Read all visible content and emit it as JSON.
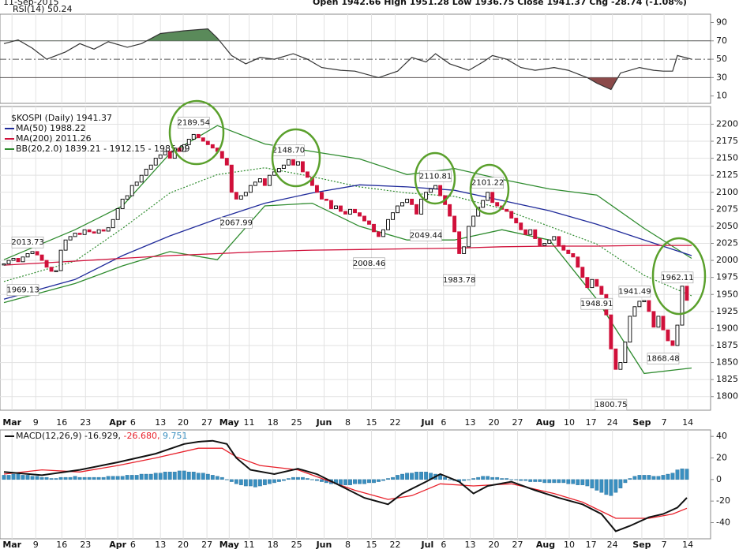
{
  "header": {
    "date": "11-Sep-2015",
    "quote": "Open 1942.66  High 1951.28  Low 1936.75  Close 1941.37  Chg -28.74 (-1.08%)"
  },
  "chart_data": [
    {
      "type": "rsi",
      "title": "RSI(14) 50.24",
      "color": "#333333",
      "overbought": 70,
      "oversold": 30,
      "midline": 50,
      "overbought_color": "#5a8a5a",
      "oversold_color": "#8b4a4a",
      "xlim": [
        0,
        149
      ],
      "ylim": [
        2,
        99
      ],
      "yticks": [
        90,
        70,
        50,
        30,
        10
      ],
      "x": [
        0,
        3,
        6,
        9,
        13,
        16,
        19,
        22,
        26,
        29,
        33,
        38,
        43,
        45,
        48,
        51,
        54,
        57,
        61,
        64,
        67,
        71,
        74,
        79,
        83,
        86,
        89,
        91,
        94,
        98,
        101,
        103,
        106,
        109,
        112,
        116,
        119,
        123,
        125,
        128,
        130,
        134,
        137,
        139,
        141,
        142,
        145
      ],
      "values": [
        67,
        71,
        62,
        50,
        58,
        67,
        61,
        69,
        63,
        67,
        78,
        81,
        83,
        73,
        54,
        45,
        52,
        50,
        56,
        50,
        41,
        38,
        37,
        30,
        37,
        52,
        47,
        56,
        45,
        38,
        47,
        54,
        50,
        41,
        38,
        41,
        38,
        30,
        24,
        17,
        35,
        41,
        38,
        37,
        37,
        54,
        50
      ]
    },
    {
      "type": "candlestick",
      "title": "$KOSPI (Daily) 1941.37",
      "color_up": "#000000",
      "color_down": "#d0103a",
      "grid": true,
      "xlim": [
        0,
        149
      ],
      "ylim": [
        1780,
        2226
      ],
      "yticks": [
        2200,
        2175,
        2150,
        2125,
        2100,
        2075,
        2050,
        2025,
        2000,
        1975,
        1950,
        1925,
        1900,
        1875,
        1850,
        1825,
        1800
      ],
      "xticks": [
        {
          "value": 1.7,
          "label": "Mar"
        },
        {
          "value": 6.7,
          "label": "9"
        },
        {
          "value": 12.2,
          "label": "16"
        },
        {
          "value": 17.2,
          "label": "23"
        },
        {
          "value": 24,
          "label": "Apr"
        },
        {
          "value": 27.2,
          "label": "6"
        },
        {
          "value": 33,
          "label": "13"
        },
        {
          "value": 37.8,
          "label": "20"
        },
        {
          "value": 42.8,
          "label": "27"
        },
        {
          "value": 47.5,
          "label": "May"
        },
        {
          "value": 51.7,
          "label": "11"
        },
        {
          "value": 56.7,
          "label": "18"
        },
        {
          "value": 61.7,
          "label": "25"
        },
        {
          "value": 67.5,
          "label": "Jun"
        },
        {
          "value": 72.5,
          "label": "8"
        },
        {
          "value": 77.5,
          "label": "15"
        },
        {
          "value": 82.5,
          "label": "22"
        },
        {
          "value": 89.3,
          "label": "Jul"
        },
        {
          "value": 92.7,
          "label": "6"
        },
        {
          "value": 98.3,
          "label": "13"
        },
        {
          "value": 103.3,
          "label": "20"
        },
        {
          "value": 108.3,
          "label": "27"
        },
        {
          "value": 114.2,
          "label": "Aug"
        },
        {
          "value": 119.2,
          "label": "10"
        },
        {
          "value": 123.8,
          "label": "17"
        },
        {
          "value": 128.3,
          "label": "24"
        },
        {
          "value": 134.5,
          "label": "Sep"
        },
        {
          "value": 139.2,
          "label": "7"
        },
        {
          "value": 144.2,
          "label": "14"
        }
      ],
      "closes": [
        1995,
        2000,
        2003,
        1998,
        2005,
        2010,
        2013,
        2008,
        2000,
        1990,
        1984,
        1985,
        2015,
        2030,
        2035,
        2040,
        2038,
        2045,
        2042,
        2040,
        2045,
        2043,
        2048,
        2060,
        2076,
        2090,
        2095,
        2110,
        2115,
        2125,
        2134,
        2140,
        2150,
        2155,
        2160,
        2150,
        2165,
        2160,
        2170,
        2178,
        2185,
        2180,
        2175,
        2170,
        2165,
        2160,
        2150,
        2140,
        2100,
        2090,
        2095,
        2100,
        2110,
        2115,
        2120,
        2110,
        2125,
        2130,
        2135,
        2140,
        2148,
        2140,
        2145,
        2130,
        2122,
        2110,
        2100,
        2090,
        2088,
        2076,
        2080,
        2072,
        2068,
        2075,
        2070,
        2065,
        2058,
        2053,
        2042,
        2035,
        2045,
        2060,
        2070,
        2080,
        2085,
        2090,
        2082,
        2068,
        2090,
        2100,
        2105,
        2110,
        2095,
        2082,
        2065,
        2042,
        2010,
        2020,
        2050,
        2065,
        2078,
        2088,
        2100,
        2085,
        2080,
        2075,
        2072,
        2062,
        2055,
        2045,
        2038,
        2045,
        2032,
        2022,
        2025,
        2030,
        2035,
        2022,
        2015,
        2010,
        2005,
        1990,
        1975,
        1960,
        1972,
        1962,
        1950,
        1920,
        1870,
        1840,
        1850,
        1880,
        1918,
        1932,
        1940,
        1941,
        1925,
        1902,
        1918,
        1898,
        1882,
        1875,
        1905,
        1962.11,
        1941.37
      ],
      "line_x": [
        0,
        15,
        25,
        35,
        45,
        55,
        65,
        75,
        85,
        95,
        105,
        115,
        125,
        135,
        145
      ],
      "series": [
        {
          "name": "MA(50) 1988.22",
          "color": "#1f2a9a",
          "values": [
            1943,
            1972,
            2007,
            2036,
            2061,
            2084,
            2099,
            2111,
            2108,
            2103,
            2088,
            2073,
            2053,
            2030,
            2007
          ]
        },
        {
          "name": "MA(200) 2011.26",
          "color": "#d0103a",
          "values": [
            1993,
            1999,
            2003,
            2007,
            2010,
            2013,
            2015,
            2016,
            2017,
            2018,
            2020,
            2021,
            2021,
            2022,
            2022
          ]
        }
      ],
      "bands": {
        "name": "BB(20,2.0) 1839.21 - 1912.15 - 1985.09",
        "color": "#2e8b2e",
        "upper": [
          2001,
          2045,
          2080,
          2157,
          2198,
          2171,
          2160,
          2149,
          2126,
          2135,
          2119,
          2105,
          2096,
          2047,
          2003
        ],
        "middle": [
          1969,
          1999,
          2047,
          2099,
          2126,
          2136,
          2123,
          2108,
          2099,
          2094,
          2076,
          2050,
          2024,
          1978,
          1948
        ],
        "lower": [
          1938,
          1966,
          1992,
          2013,
          2001,
          2080,
          2084,
          2050,
          2030,
          2030,
          2045,
          2030,
          1943,
          1834,
          1842
        ]
      },
      "annotations": [
        {
          "label": "2013.73",
          "value": 2013.73,
          "x": 5,
          "position": "above"
        },
        {
          "label": "1969.13",
          "value": 1969.13,
          "x": 4,
          "position": "below"
        },
        {
          "label": "2189.54",
          "value": 2189.54,
          "x": 40,
          "position": "above"
        },
        {
          "label": "2067.99",
          "value": 2067.99,
          "x": 49,
          "position": "below"
        },
        {
          "label": "2148.70",
          "value": 2148.7,
          "x": 60,
          "position": "above"
        },
        {
          "label": "2008.46",
          "value": 2008.46,
          "x": 77,
          "position": "below"
        },
        {
          "label": "2049.44",
          "value": 2049.44,
          "x": 89,
          "position": "below"
        },
        {
          "label": "2110.81",
          "value": 2110.81,
          "x": 91,
          "position": "above"
        },
        {
          "label": "1983.78",
          "value": 1983.78,
          "x": 96,
          "position": "below"
        },
        {
          "label": "2101.22",
          "value": 2101.22,
          "x": 102,
          "position": "above"
        },
        {
          "label": "1948.91",
          "value": 1948.91,
          "x": 125,
          "position": "below"
        },
        {
          "label": "1800.75",
          "value": 1800.75,
          "x": 128,
          "position": "below"
        },
        {
          "label": "1941.49",
          "value": 1941.49,
          "x": 133,
          "position": "above"
        },
        {
          "label": "1868.48",
          "value": 1868.48,
          "x": 139,
          "position": "below"
        },
        {
          "label": "1962.11",
          "value": 1962.11,
          "x": 142,
          "position": "above"
        }
      ]
    },
    {
      "type": "macd",
      "title": "MACD(12,26,9)",
      "xlim": [
        0,
        149
      ],
      "ylim": [
        -55,
        46
      ],
      "yticks": [
        40,
        20,
        0,
        -20,
        -40
      ],
      "series": [
        {
          "name": "-16.929,",
          "color": "#111111",
          "x": [
            0,
            8,
            16,
            24,
            32,
            38,
            41,
            44,
            47,
            49,
            52,
            57,
            62,
            66,
            71,
            76,
            81,
            84,
            89,
            92,
            96,
            99,
            102,
            107,
            112,
            117,
            122,
            126,
            129,
            132,
            136,
            139,
            142,
            144
          ],
          "values": [
            7,
            4,
            9,
            16,
            24,
            33,
            35,
            36,
            33,
            20,
            9,
            5,
            10,
            5,
            -6,
            -17,
            -23,
            -13,
            -2,
            5,
            -2,
            -13,
            -6,
            -2,
            -10,
            -17,
            -23,
            -32,
            -48,
            -43,
            -35,
            -32,
            -26,
            -16.929
          ]
        },
        {
          "name": "-26.680,",
          "color": "#e8202a",
          "x": [
            0,
            8,
            16,
            24,
            32,
            41,
            46,
            49,
            54,
            62,
            67,
            74,
            81,
            86,
            92,
            99,
            107,
            116,
            122,
            129,
            136,
            141,
            144
          ],
          "values": [
            5,
            9,
            7,
            13,
            20,
            29,
            29,
            21,
            13,
            9,
            1,
            -10,
            -18.5,
            -15,
            -4,
            -6,
            -4,
            -13,
            -21,
            -36,
            -36,
            -32,
            -26.68
          ]
        }
      ],
      "histogram": {
        "name": "9.751",
        "color": "#3a8fc0",
        "values": [
          4,
          4,
          5,
          5,
          4,
          4,
          3,
          3,
          2,
          2,
          1,
          1,
          2,
          2,
          2,
          3,
          2,
          2,
          2,
          2,
          2,
          2,
          3,
          3,
          3,
          3,
          4,
          4,
          4,
          5,
          5,
          5,
          6,
          6,
          7,
          7,
          7,
          8,
          8,
          7,
          7,
          6,
          6,
          5,
          4,
          3,
          2,
          0,
          -2,
          -4,
          -5,
          -6,
          -6,
          -7,
          -6,
          -5,
          -4,
          -3,
          -2,
          -1,
          1,
          2,
          2,
          2,
          1,
          0,
          -1,
          -2,
          -3,
          -4,
          -4,
          -5,
          -5,
          -5,
          -4,
          -4,
          -4,
          -3,
          -3,
          -2,
          -1,
          1,
          2,
          4,
          5,
          6,
          6,
          7,
          7,
          7,
          6,
          5,
          4,
          2,
          0,
          -1,
          -2,
          -1,
          0,
          1,
          2,
          3,
          3,
          2,
          2,
          1,
          1,
          0,
          0,
          -1,
          -1,
          -2,
          -2,
          -2,
          -3,
          -3,
          -3,
          -3,
          -3,
          -4,
          -4,
          -5,
          -5,
          -6,
          -8,
          -10,
          -12,
          -14,
          -15,
          -12,
          -8,
          -3,
          1,
          3,
          4,
          4,
          4,
          3,
          3,
          4,
          5,
          6,
          9,
          10,
          9.751
        ]
      }
    }
  ]
}
